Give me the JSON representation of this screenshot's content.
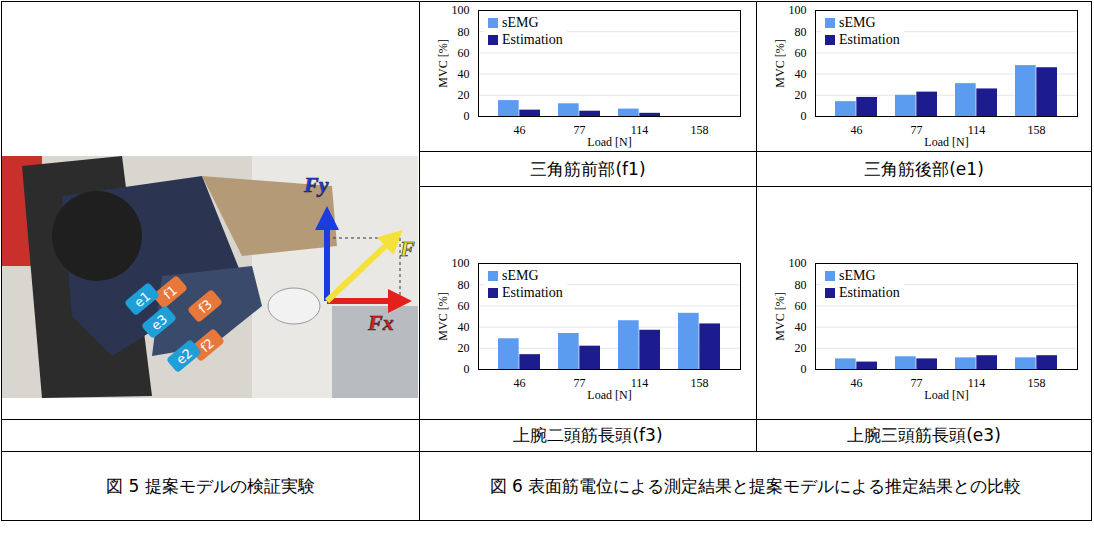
{
  "figure_5": {
    "caption": "図 5 提案モデルの検証実験",
    "electrodes": [
      {
        "label": "f1",
        "color": "#e8773a"
      },
      {
        "label": "f3",
        "color": "#e8773a"
      },
      {
        "label": "e1",
        "color": "#1e9fd8"
      },
      {
        "label": "e3",
        "color": "#1e9fd8"
      },
      {
        "label": "f2",
        "color": "#e8773a"
      },
      {
        "label": "e2",
        "color": "#1e9fd8"
      }
    ],
    "forces": [
      {
        "label": "Fy",
        "color": "#1d3ce0"
      },
      {
        "label": "Fx",
        "color": "#e3201b"
      },
      {
        "label": "F",
        "color": "#f4e23a"
      }
    ]
  },
  "figure_6": {
    "caption": "図 6 表面筋電位による測定結果と提案モデルによる推定結果との比較"
  },
  "chart_data": [
    {
      "type": "bar",
      "title": "三角筋前部(f1)",
      "x_label": "Load [N]",
      "y_label": "MVC [%]",
      "categories": [
        "46",
        "77",
        "114",
        "158"
      ],
      "series": [
        {
          "name": "sEMG",
          "color": "#5b9cf0",
          "values": [
            15,
            12,
            7,
            0
          ]
        },
        {
          "name": "Estimation",
          "color": "#1c1c8f",
          "values": [
            6,
            5,
            3,
            0
          ]
        }
      ],
      "ylim": [
        0,
        100
      ],
      "yticks": [
        0,
        20,
        40,
        60,
        80,
        100
      ],
      "grid": true,
      "legend": "top-left"
    },
    {
      "type": "bar",
      "title": "三角筋後部(e1)",
      "x_label": "Load [N]",
      "y_label": "MVC [%]",
      "categories": [
        "46",
        "77",
        "114",
        "158"
      ],
      "series": [
        {
          "name": "sEMG",
          "color": "#5b9cf0",
          "values": [
            14,
            20,
            31,
            48
          ]
        },
        {
          "name": "Estimation",
          "color": "#1c1c8f",
          "values": [
            18,
            23,
            26,
            46
          ]
        }
      ],
      "ylim": [
        0,
        100
      ],
      "yticks": [
        0,
        20,
        40,
        60,
        80,
        100
      ],
      "grid": true,
      "legend": "top-left"
    },
    {
      "type": "bar",
      "title": "上腕二頭筋長頭(f3)",
      "x_label": "Load [N]",
      "y_label": "MVC [%]",
      "categories": [
        "46",
        "77",
        "114",
        "158"
      ],
      "series": [
        {
          "name": "sEMG",
          "color": "#5b9cf0",
          "values": [
            29,
            34,
            46,
            53
          ]
        },
        {
          "name": "Estimation",
          "color": "#1c1c8f",
          "values": [
            14,
            22,
            37,
            43
          ]
        }
      ],
      "ylim": [
        0,
        100
      ],
      "yticks": [
        0,
        20,
        40,
        60,
        80,
        100
      ],
      "grid": true,
      "legend": "top-left"
    },
    {
      "type": "bar",
      "title": "上腕三頭筋長頭(e3)",
      "x_label": "Load [N]",
      "y_label": "MVC [%]",
      "categories": [
        "46",
        "77",
        "114",
        "158"
      ],
      "series": [
        {
          "name": "sEMG",
          "color": "#5b9cf0",
          "values": [
            10,
            12,
            11,
            11
          ]
        },
        {
          "name": "Estimation",
          "color": "#1c1c8f",
          "values": [
            7,
            10,
            13,
            13
          ]
        }
      ],
      "ylim": [
        0,
        100
      ],
      "yticks": [
        0,
        20,
        40,
        60,
        80,
        100
      ],
      "grid": true,
      "legend": "top-left"
    }
  ]
}
